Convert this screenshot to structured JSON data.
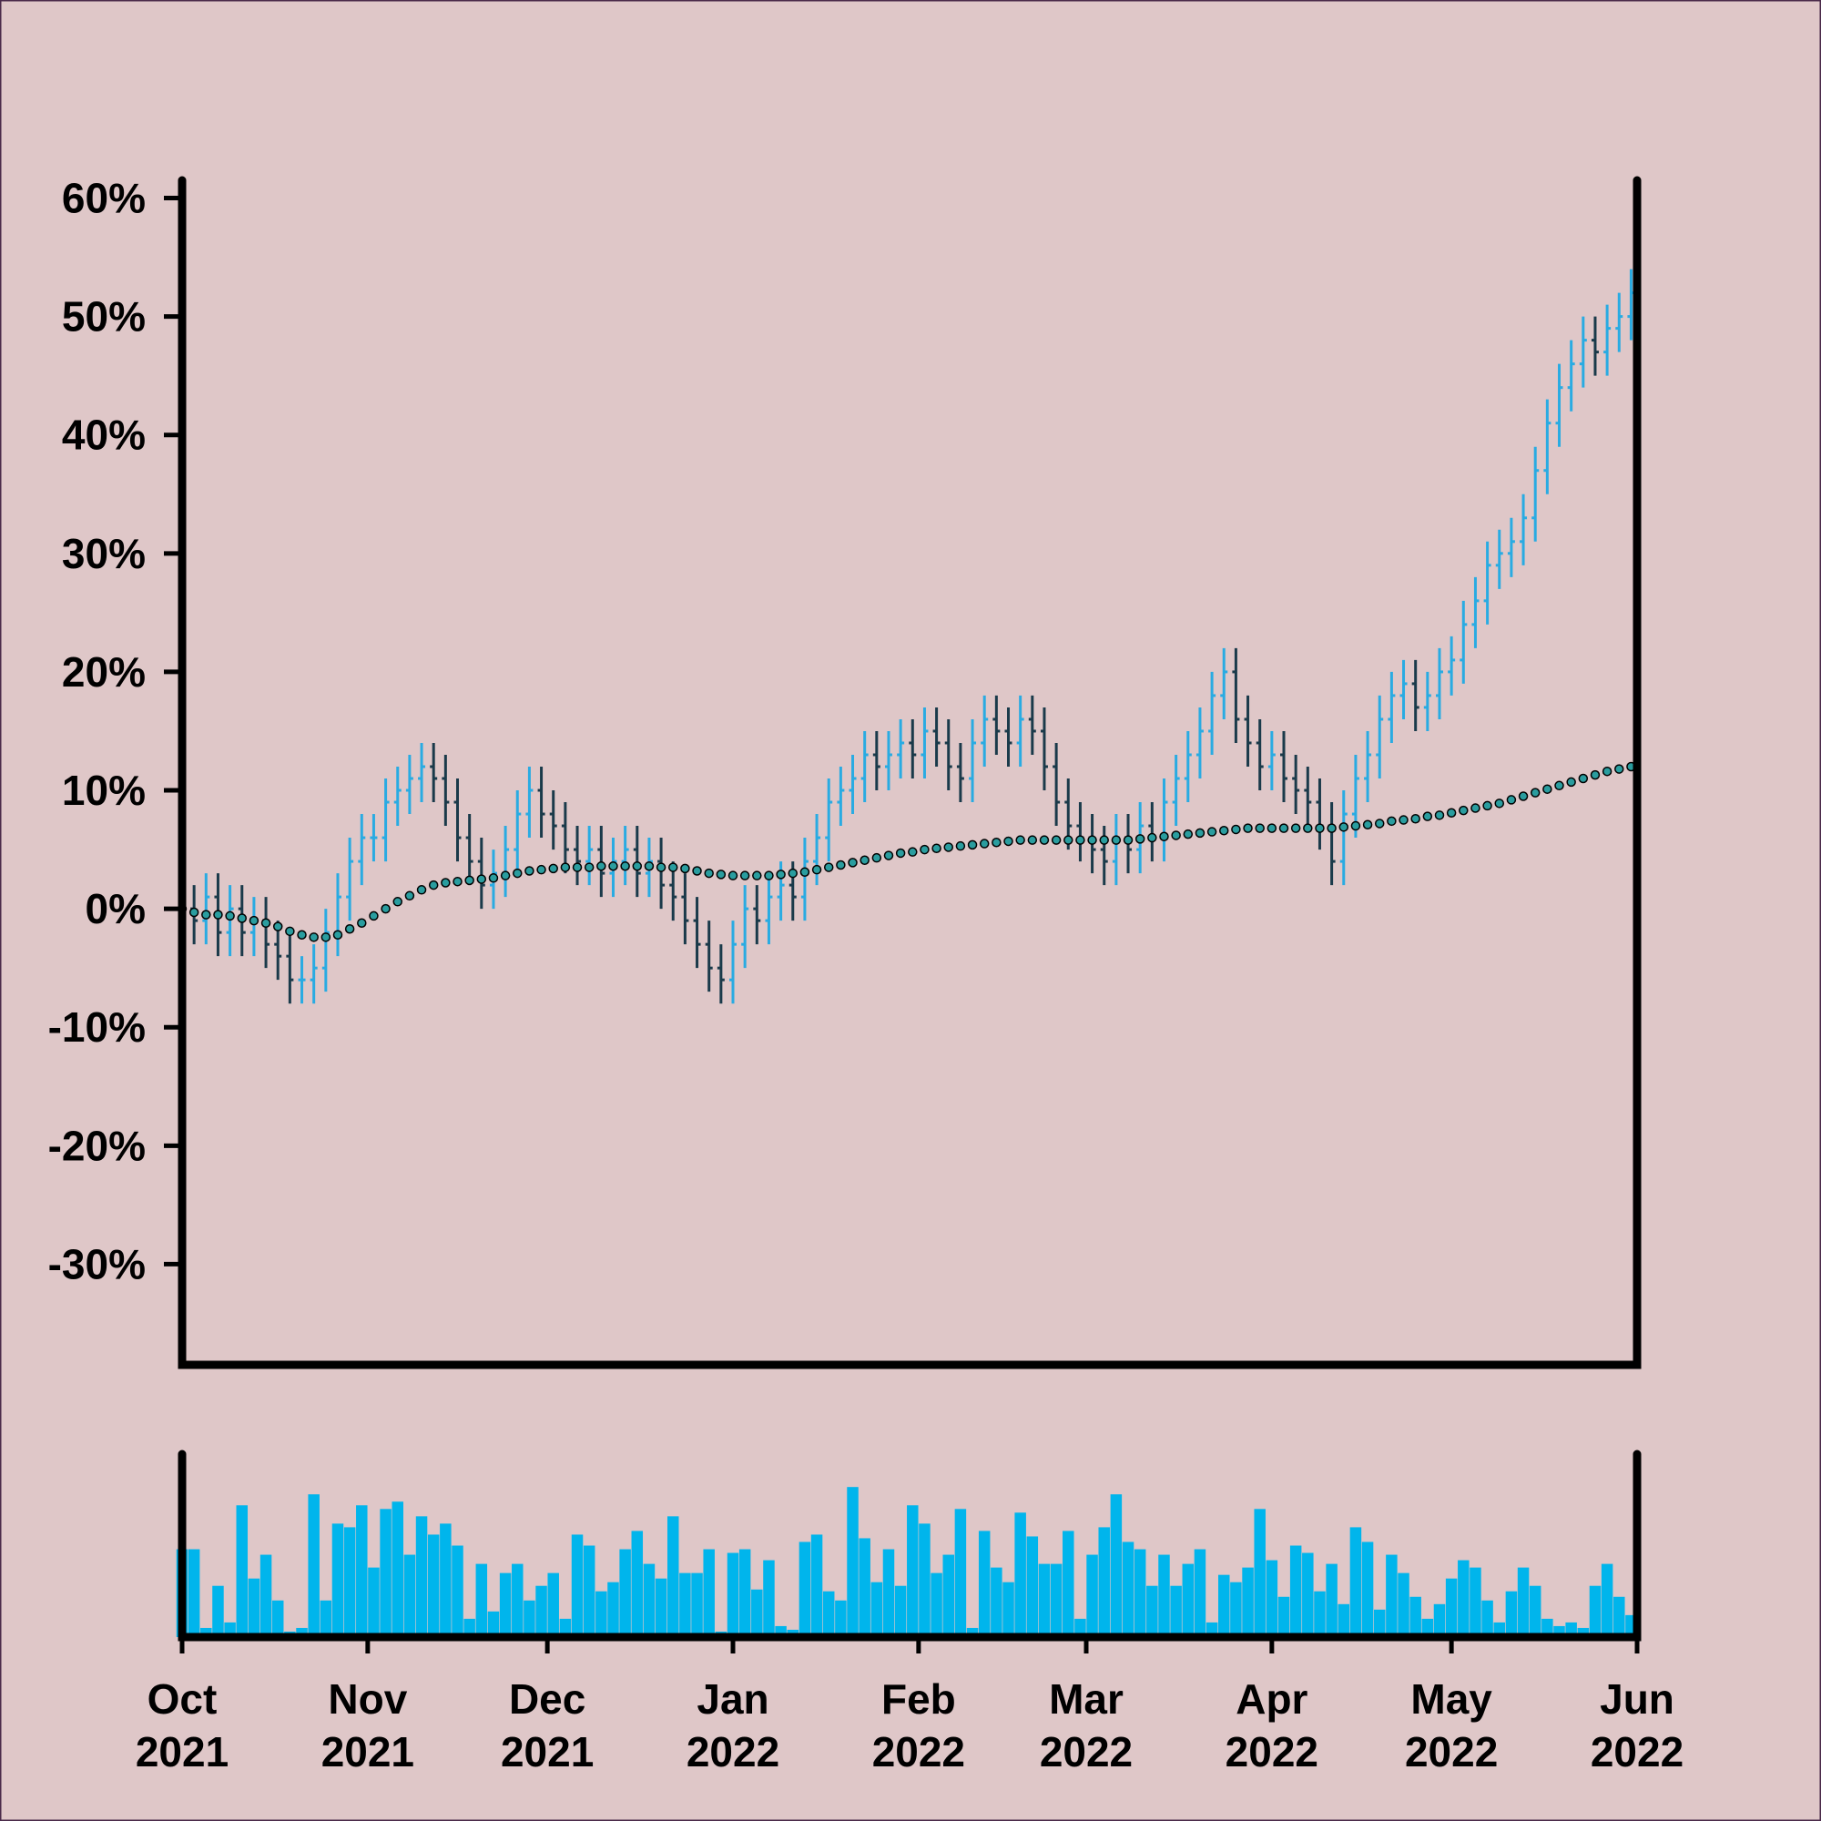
{
  "chart_data": {
    "type": "ohlc",
    "up_color": "#29abe2",
    "down_color": "#1a3a4a",
    "ma_color": "#2a9d9f",
    "volume_color": "#00b5ec",
    "xlim": [
      0,
      243
    ],
    "xticks": [
      {
        "value": 0,
        "label": "Oct 2021"
      },
      {
        "value": 31,
        "label": "Nov 2021"
      },
      {
        "value": 61,
        "label": "Dec 2021"
      },
      {
        "value": 92,
        "label": "Jan 2022"
      },
      {
        "value": 123,
        "label": "Feb 2022"
      },
      {
        "value": 151,
        "label": "Mar 2022"
      },
      {
        "value": 182,
        "label": "Apr 2022"
      },
      {
        "value": 212,
        "label": "May 2022"
      },
      {
        "value": 243,
        "label": "Jun 2022"
      }
    ],
    "ylim": [
      -38.5,
      61.5
    ],
    "yticks": [
      {
        "value": 60,
        "label": "60%"
      },
      {
        "value": 50,
        "label": "50%"
      },
      {
        "value": 40,
        "label": "40%"
      },
      {
        "value": 30,
        "label": "30%"
      },
      {
        "value": 20,
        "label": "20%"
      },
      {
        "value": 10,
        "label": "10%"
      },
      {
        "value": 0,
        "label": "0%"
      },
      {
        "value": -10,
        "label": "-10%"
      },
      {
        "value": -20,
        "label": "-20%"
      },
      {
        "value": -30,
        "label": "-30%"
      }
    ],
    "x": [
      0,
      2,
      4,
      6,
      8,
      10,
      12,
      14,
      16,
      18,
      20,
      22,
      24,
      26,
      28,
      30,
      32,
      34,
      36,
      38,
      40,
      42,
      44,
      46,
      48,
      50,
      52,
      54,
      56,
      58,
      60,
      62,
      64,
      66,
      68,
      70,
      72,
      74,
      76,
      78,
      80,
      82,
      84,
      86,
      88,
      90,
      92,
      94,
      96,
      98,
      100,
      102,
      104,
      106,
      108,
      110,
      112,
      114,
      116,
      118,
      120,
      122,
      124,
      126,
      128,
      130,
      132,
      134,
      136,
      138,
      140,
      142,
      144,
      146,
      148,
      150,
      152,
      154,
      156,
      158,
      160,
      162,
      164,
      166,
      168,
      170,
      172,
      174,
      176,
      178,
      180,
      182,
      184,
      186,
      188,
      190,
      192,
      194,
      196,
      198,
      200,
      202,
      204,
      206,
      208,
      210,
      212,
      214,
      216,
      218,
      220,
      222,
      224,
      226,
      228,
      230,
      232,
      234,
      236,
      238,
      240,
      242
    ],
    "open": [
      0.5,
      0,
      -1,
      1,
      -2,
      0,
      -2,
      -1,
      -3,
      -4,
      -6,
      -6,
      -5,
      -2,
      1,
      4,
      6,
      6,
      9,
      10,
      11,
      12,
      11,
      9,
      6,
      4,
      2,
      3,
      5,
      8,
      10,
      8,
      7,
      5,
      4,
      5,
      3,
      4,
      5,
      3,
      4,
      2,
      1,
      -1,
      -3,
      -5,
      -6,
      -3,
      0,
      -1,
      1,
      2,
      1,
      4,
      6,
      9,
      10,
      11,
      13,
      12,
      13,
      14,
      13,
      15,
      14,
      12,
      11,
      14,
      16,
      15,
      14,
      16,
      15,
      12,
      9,
      7,
      6,
      5,
      4,
      6,
      5,
      7,
      6,
      9,
      11,
      13,
      15,
      18,
      20,
      16,
      14,
      12,
      13,
      11,
      10,
      9,
      7,
      4,
      8,
      11,
      13,
      16,
      18,
      19,
      17,
      18,
      20,
      21,
      24,
      26,
      29,
      30,
      31,
      33,
      37,
      41,
      44,
      46,
      48,
      47,
      49,
      50
    ],
    "high": [
      2.5,
      2,
      3,
      3,
      2,
      2,
      1,
      1,
      -1,
      -2,
      -4,
      -3,
      0,
      3,
      6,
      8,
      8,
      11,
      12,
      13,
      14,
      14,
      13,
      11,
      8,
      6,
      5,
      7,
      10,
      12,
      12,
      10,
      9,
      7,
      7,
      7,
      6,
      7,
      7,
      6,
      6,
      4,
      3,
      1,
      -1,
      -3,
      -1,
      2,
      2,
      3,
      4,
      4,
      6,
      8,
      11,
      12,
      13,
      15,
      15,
      15,
      16,
      16,
      17,
      17,
      16,
      14,
      16,
      18,
      18,
      17,
      18,
      18,
      17,
      14,
      11,
      9,
      8,
      7,
      8,
      8,
      9,
      9,
      11,
      13,
      15,
      17,
      20,
      22,
      22,
      18,
      16,
      15,
      15,
      13,
      12,
      11,
      9,
      10,
      13,
      15,
      18,
      20,
      21,
      21,
      20,
      22,
      23,
      26,
      28,
      31,
      32,
      33,
      35,
      39,
      43,
      46,
      48,
      50,
      50,
      51,
      52,
      54
    ],
    "low": [
      -2,
      -3,
      -3,
      -4,
      -4,
      -4,
      -4,
      -5,
      -6,
      -8,
      -8,
      -8,
      -7,
      -4,
      -1,
      2,
      4,
      4,
      7,
      8,
      9,
      9,
      7,
      4,
      2,
      0,
      0,
      1,
      3,
      6,
      6,
      5,
      3,
      2,
      2,
      1,
      1,
      2,
      1,
      1,
      0,
      -1,
      -3,
      -5,
      -7,
      -8,
      -8,
      -5,
      -3,
      -3,
      -1,
      -1,
      -1,
      2,
      4,
      7,
      8,
      9,
      10,
      10,
      11,
      11,
      11,
      12,
      10,
      9,
      9,
      12,
      13,
      12,
      12,
      13,
      10,
      7,
      5,
      4,
      3,
      2,
      2,
      3,
      3,
      4,
      4,
      7,
      9,
      11,
      13,
      16,
      14,
      12,
      10,
      10,
      9,
      8,
      7,
      5,
      2,
      2,
      6,
      9,
      11,
      14,
      16,
      15,
      15,
      16,
      18,
      19,
      22,
      24,
      27,
      28,
      29,
      31,
      35,
      39,
      42,
      44,
      45,
      45,
      47,
      48
    ],
    "close": [
      0,
      -1,
      1,
      -2,
      0,
      -2,
      -1,
      -3,
      -4,
      -6,
      -6,
      -5,
      -2,
      1,
      4,
      6,
      6,
      9,
      10,
      11,
      12,
      11,
      9,
      6,
      4,
      2,
      3,
      5,
      8,
      10,
      8,
      7,
      5,
      4,
      5,
      3,
      4,
      5,
      3,
      4,
      2,
      1,
      -1,
      -3,
      -5,
      -6,
      -3,
      0,
      -1,
      1,
      2,
      1,
      4,
      6,
      9,
      10,
      11,
      13,
      12,
      13,
      14,
      13,
      15,
      14,
      12,
      11,
      14,
      16,
      15,
      14,
      16,
      15,
      12,
      9,
      7,
      6,
      5,
      4,
      6,
      5,
      7,
      6,
      9,
      11,
      13,
      15,
      18,
      20,
      16,
      14,
      12,
      13,
      11,
      10,
      9,
      7,
      4,
      8,
      11,
      13,
      16,
      18,
      19,
      17,
      18,
      20,
      21,
      24,
      26,
      29,
      30,
      31,
      33,
      37,
      41,
      44,
      46,
      48,
      47,
      49,
      50,
      52
    ],
    "ma": [
      0,
      -0.3,
      -0.5,
      -0.5,
      -0.6,
      -0.8,
      -1,
      -1.2,
      -1.5,
      -1.9,
      -2.2,
      -2.4,
      -2.4,
      -2.2,
      -1.7,
      -1.2,
      -0.6,
      0,
      0.6,
      1.1,
      1.6,
      2,
      2.2,
      2.3,
      2.4,
      2.5,
      2.6,
      2.8,
      3,
      3.2,
      3.3,
      3.4,
      3.5,
      3.5,
      3.5,
      3.6,
      3.6,
      3.6,
      3.6,
      3.6,
      3.5,
      3.5,
      3.4,
      3.2,
      3,
      2.9,
      2.8,
      2.8,
      2.8,
      2.8,
      2.9,
      3,
      3.1,
      3.3,
      3.5,
      3.7,
      3.9,
      4.1,
      4.3,
      4.5,
      4.7,
      4.8,
      5,
      5.1,
      5.2,
      5.3,
      5.4,
      5.5,
      5.6,
      5.7,
      5.8,
      5.8,
      5.8,
      5.8,
      5.8,
      5.8,
      5.8,
      5.8,
      5.8,
      5.8,
      5.9,
      6,
      6.1,
      6.2,
      6.3,
      6.4,
      6.5,
      6.6,
      6.7,
      6.8,
      6.8,
      6.8,
      6.8,
      6.8,
      6.8,
      6.8,
      6.8,
      6.9,
      7,
      7.1,
      7.2,
      7.4,
      7.5,
      7.6,
      7.8,
      7.9,
      8.1,
      8.3,
      8.5,
      8.7,
      8.9,
      9.2,
      9.5,
      9.8,
      10.1,
      10.4,
      10.7,
      11,
      11.3,
      11.6,
      11.8,
      12
    ],
    "volume_ylim": [
      0,
      100
    ],
    "volume": [
      48,
      48,
      5,
      28,
      8,
      72,
      32,
      45,
      20,
      3,
      5,
      78,
      20,
      62,
      60,
      72,
      38,
      70,
      74,
      45,
      66,
      56,
      62,
      50,
      10,
      40,
      14,
      35,
      40,
      20,
      28,
      35,
      10,
      56,
      50,
      25,
      30,
      48,
      58,
      40,
      32,
      66,
      35,
      35,
      48,
      3,
      46,
      48,
      26,
      42,
      6,
      4,
      52,
      56,
      25,
      20,
      82,
      54,
      30,
      48,
      28,
      72,
      62,
      35,
      45,
      70,
      5,
      58,
      38,
      30,
      68,
      55,
      40,
      40,
      58,
      10,
      45,
      60,
      78,
      52,
      48,
      28,
      45,
      28,
      40,
      48,
      8,
      34,
      30,
      38,
      70,
      42,
      22,
      50,
      46,
      25,
      40,
      18,
      60,
      52,
      15,
      45,
      35,
      22,
      10,
      18,
      32,
      42,
      38,
      20,
      8,
      25,
      38,
      28,
      10,
      6,
      8,
      5,
      28,
      40,
      22,
      12
    ]
  }
}
